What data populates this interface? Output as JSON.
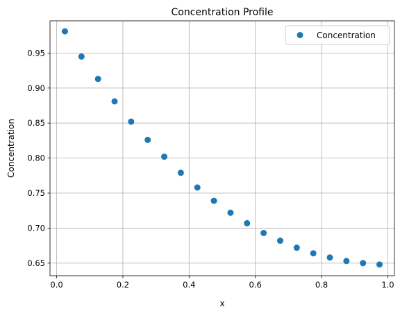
{
  "chart_data": {
    "type": "scatter",
    "title": "Concentration Profile",
    "xlabel": "x",
    "ylabel": "Concentration",
    "xlim": [
      -0.02,
      1.02
    ],
    "ylim": [
      0.632,
      0.996
    ],
    "xticks": [
      0.0,
      0.2,
      0.4,
      0.6,
      0.8,
      1.0
    ],
    "xtick_labels": [
      "0.0",
      "0.2",
      "0.4",
      "0.6",
      "0.8",
      "1.0"
    ],
    "yticks": [
      0.65,
      0.7,
      0.75,
      0.8,
      0.85,
      0.9,
      0.95
    ],
    "ytick_labels": [
      "0.65",
      "0.70",
      "0.75",
      "0.80",
      "0.85",
      "0.90",
      "0.95"
    ],
    "grid": true,
    "legend_position": "top-right",
    "series": [
      {
        "name": "Concentration",
        "color": "#1f77b4",
        "marker": "circle",
        "x": [
          0.025,
          0.075,
          0.125,
          0.175,
          0.225,
          0.275,
          0.325,
          0.375,
          0.425,
          0.475,
          0.525,
          0.575,
          0.625,
          0.675,
          0.725,
          0.775,
          0.825,
          0.875,
          0.925,
          0.975
        ],
        "y": [
          0.981,
          0.945,
          0.913,
          0.881,
          0.852,
          0.826,
          0.802,
          0.779,
          0.758,
          0.739,
          0.722,
          0.707,
          0.693,
          0.682,
          0.672,
          0.664,
          0.658,
          0.653,
          0.65,
          0.648
        ]
      }
    ]
  }
}
